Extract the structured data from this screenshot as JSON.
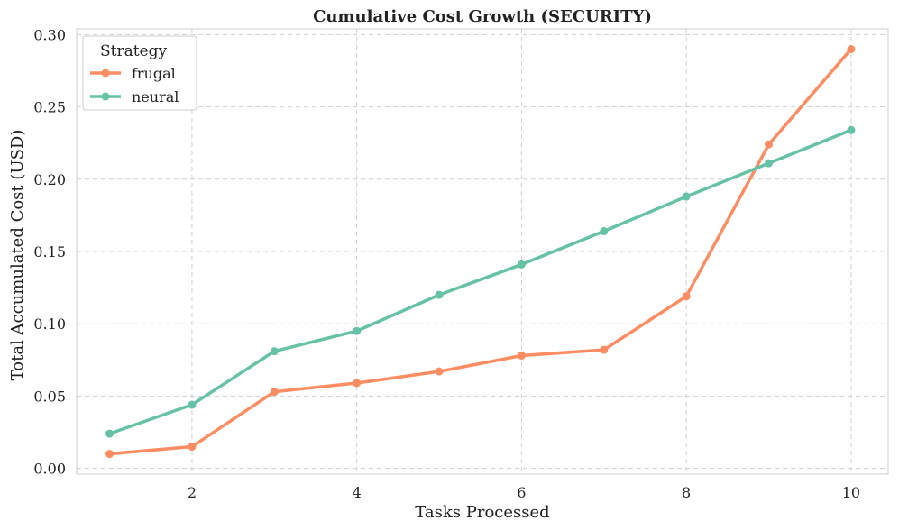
{
  "chart_data": {
    "type": "line",
    "title": "Cumulative Cost Growth (SECURITY)",
    "xlabel": "Tasks Processed",
    "ylabel": "Total Accumulated Cost (USD)",
    "xlim": [
      0.6,
      10.45
    ],
    "ylim": [
      -0.004,
      0.304
    ],
    "xticks": [
      2,
      4,
      6,
      8,
      10
    ],
    "xtick_labels": [
      "2",
      "4",
      "6",
      "8",
      "10"
    ],
    "yticks": [
      0.0,
      0.05,
      0.1,
      0.15,
      0.2,
      0.25,
      0.3
    ],
    "ytick_labels": [
      "0.00",
      "0.05",
      "0.10",
      "0.15",
      "0.20",
      "0.25",
      "0.30"
    ],
    "grid": true,
    "legend": {
      "title": "Strategy",
      "position": "top-left"
    },
    "x": [
      1,
      2,
      3,
      4,
      5,
      6,
      7,
      8,
      9,
      10
    ],
    "series": [
      {
        "name": "frugal",
        "color": "#fc8d62",
        "values": [
          0.01,
          0.015,
          0.053,
          0.059,
          0.067,
          0.078,
          0.082,
          0.119,
          0.224,
          0.29
        ]
      },
      {
        "name": "neural",
        "color": "#66c2a5",
        "values": [
          0.024,
          0.044,
          0.081,
          0.095,
          0.12,
          0.141,
          0.164,
          0.188,
          0.211,
          0.234
        ]
      }
    ]
  }
}
